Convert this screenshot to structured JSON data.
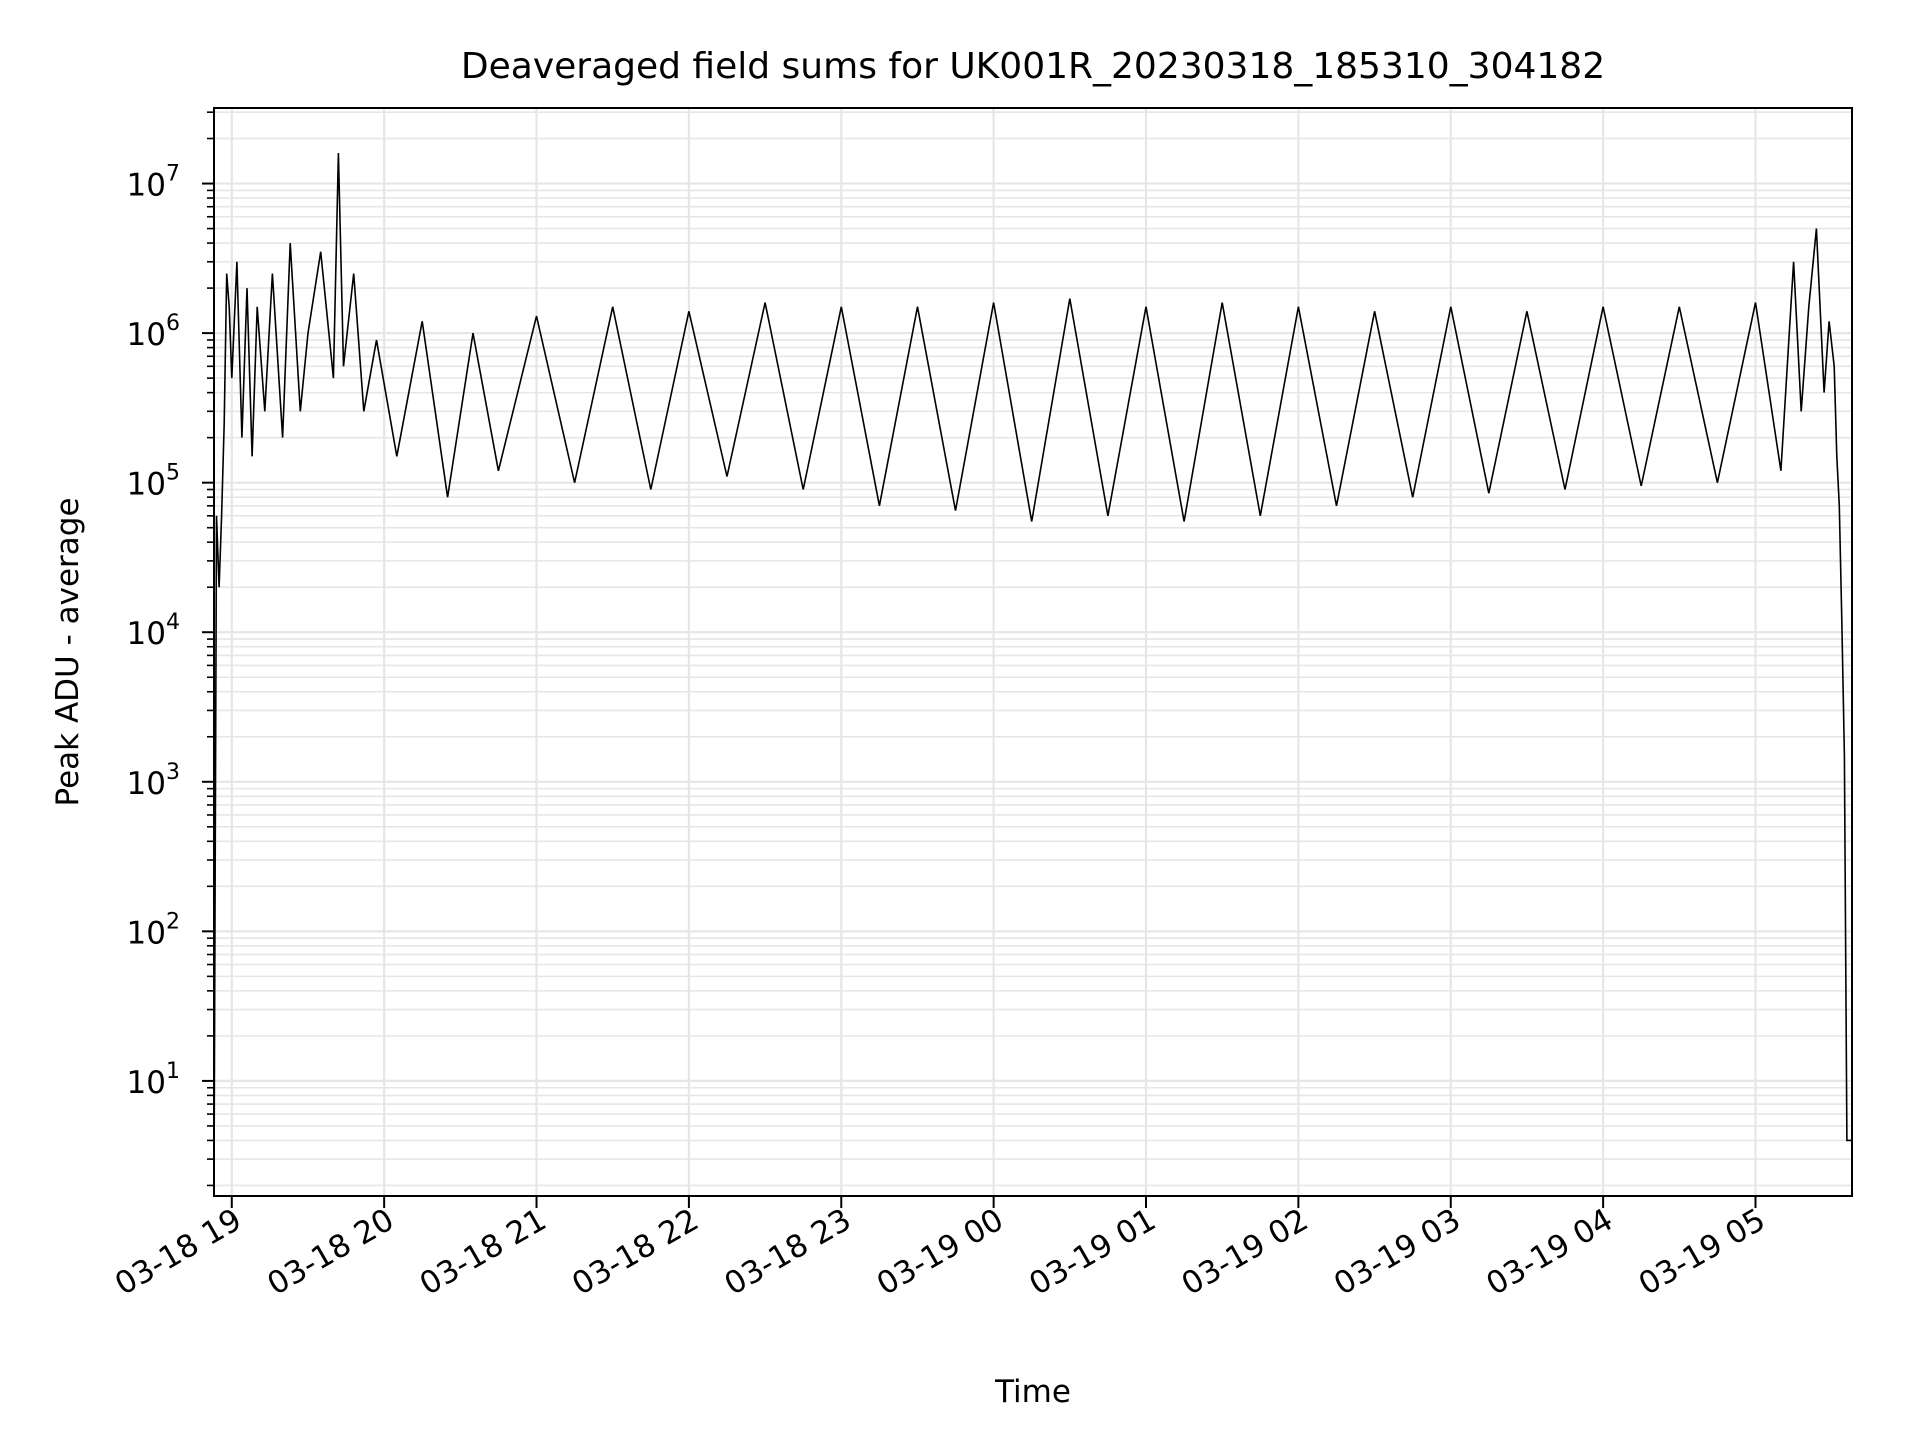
{
  "chart_data": {
    "type": "line",
    "title": "Deaveraged field sums for UK001R_20230318_185310_304182",
    "xlabel": "Time",
    "ylabel": "Peak ADU - average",
    "yscale": "log",
    "ylim": [
      1.7,
      32000000.0
    ],
    "xlim": [
      "2023-03-18 18:53",
      "2023-03-19 05:38"
    ],
    "x_ticks": [
      {
        "t": "2023-03-18 19:00",
        "label": "03-18 19"
      },
      {
        "t": "2023-03-18 20:00",
        "label": "03-18 20"
      },
      {
        "t": "2023-03-18 21:00",
        "label": "03-18 21"
      },
      {
        "t": "2023-03-18 22:00",
        "label": "03-18 22"
      },
      {
        "t": "2023-03-18 23:00",
        "label": "03-18 23"
      },
      {
        "t": "2023-03-19 00:00",
        "label": "03-19 00"
      },
      {
        "t": "2023-03-19 01:00",
        "label": "03-19 01"
      },
      {
        "t": "2023-03-19 02:00",
        "label": "03-19 02"
      },
      {
        "t": "2023-03-19 03:00",
        "label": "03-19 03"
      },
      {
        "t": "2023-03-19 04:00",
        "label": "03-19 04"
      },
      {
        "t": "2023-03-19 05:00",
        "label": "03-19 05"
      }
    ],
    "y_ticks": [
      {
        "value": 10,
        "base": "10",
        "exp": "1"
      },
      {
        "value": 100,
        "base": "10",
        "exp": "2"
      },
      {
        "value": 1000,
        "base": "10",
        "exp": "3"
      },
      {
        "value": 10000,
        "base": "10",
        "exp": "4"
      },
      {
        "value": 100000,
        "base": "10",
        "exp": "5"
      },
      {
        "value": 1000000,
        "base": "10",
        "exp": "6"
      },
      {
        "value": 10000000,
        "base": "10",
        "exp": "7"
      }
    ],
    "grid": true,
    "line_color": "#000000",
    "grid_color": "#e6e6e6",
    "series": [
      {
        "x": [
          "2023-03-18 18:53",
          "2023-03-18 18:54",
          "2023-03-18 18:55",
          "2023-03-18 18:56",
          "2023-03-18 18:57",
          "2023-03-18 18:58",
          "2023-03-18 18:59",
          "2023-03-18 19:00",
          "2023-03-18 19:02",
          "2023-03-18 19:04",
          "2023-03-18 19:06",
          "2023-03-18 19:08",
          "2023-03-18 19:10",
          "2023-03-18 19:13",
          "2023-03-18 19:16",
          "2023-03-18 19:20",
          "2023-03-18 19:23",
          "2023-03-18 19:27",
          "2023-03-18 19:30",
          "2023-03-18 19:35",
          "2023-03-18 19:40",
          "2023-03-18 19:42",
          "2023-03-18 19:44",
          "2023-03-18 19:48",
          "2023-03-18 19:52",
          "2023-03-18 19:57",
          "2023-03-18 20:05",
          "2023-03-18 20:15",
          "2023-03-18 20:25",
          "2023-03-18 20:35",
          "2023-03-18 20:45",
          "2023-03-18 21:00",
          "2023-03-18 21:15",
          "2023-03-18 21:30",
          "2023-03-18 21:45",
          "2023-03-18 22:00",
          "2023-03-18 22:15",
          "2023-03-18 22:30",
          "2023-03-18 22:45",
          "2023-03-18 23:00",
          "2023-03-18 23:15",
          "2023-03-18 23:30",
          "2023-03-18 23:45",
          "2023-03-19 00:00",
          "2023-03-19 00:15",
          "2023-03-19 00:30",
          "2023-03-19 00:45",
          "2023-03-19 01:00",
          "2023-03-19 01:15",
          "2023-03-19 01:30",
          "2023-03-19 01:45",
          "2023-03-19 02:00",
          "2023-03-19 02:15",
          "2023-03-19 02:30",
          "2023-03-19 02:45",
          "2023-03-19 03:00",
          "2023-03-19 03:15",
          "2023-03-19 03:30",
          "2023-03-19 03:45",
          "2023-03-19 04:00",
          "2023-03-19 04:15",
          "2023-03-19 04:30",
          "2023-03-19 04:45",
          "2023-03-19 05:00",
          "2023-03-19 05:10",
          "2023-03-19 05:15",
          "2023-03-19 05:18",
          "2023-03-19 05:21",
          "2023-03-19 05:24",
          "2023-03-19 05:27",
          "2023-03-19 05:29",
          "2023-03-19 05:31",
          "2023-03-19 05:32",
          "2023-03-19 05:33",
          "2023-03-19 05:34",
          "2023-03-19 05:35",
          "2023-03-19 05:36",
          "2023-03-19 05:37",
          "2023-03-19 05:38"
        ],
        "y": [
          2,
          60000,
          20000,
          60000,
          250000,
          2500000,
          1500000,
          500000,
          3000000,
          200000,
          2000000,
          150000,
          1500000,
          300000,
          2500000,
          200000,
          4000000,
          300000,
          1000000,
          3500000,
          500000,
          16000000,
          600000,
          2500000,
          300000,
          900000,
          150000,
          1200000,
          80000,
          1000000,
          120000,
          1300000,
          100000,
          1500000,
          90000,
          1400000,
          110000,
          1600000,
          90000,
          1500000,
          70000,
          1500000,
          65000,
          1600000,
          55000,
          1700000,
          60000,
          1500000,
          55000,
          1600000,
          60000,
          1500000,
          70000,
          1400000,
          80000,
          1500000,
          85000,
          1400000,
          90000,
          1500000,
          95000,
          1500000,
          100000,
          1600000,
          120000,
          3000000,
          300000,
          1500000,
          5000000,
          400000,
          1200000,
          600000,
          150000,
          70000,
          12000,
          1500,
          4,
          4,
          4
        ]
      }
    ]
  }
}
